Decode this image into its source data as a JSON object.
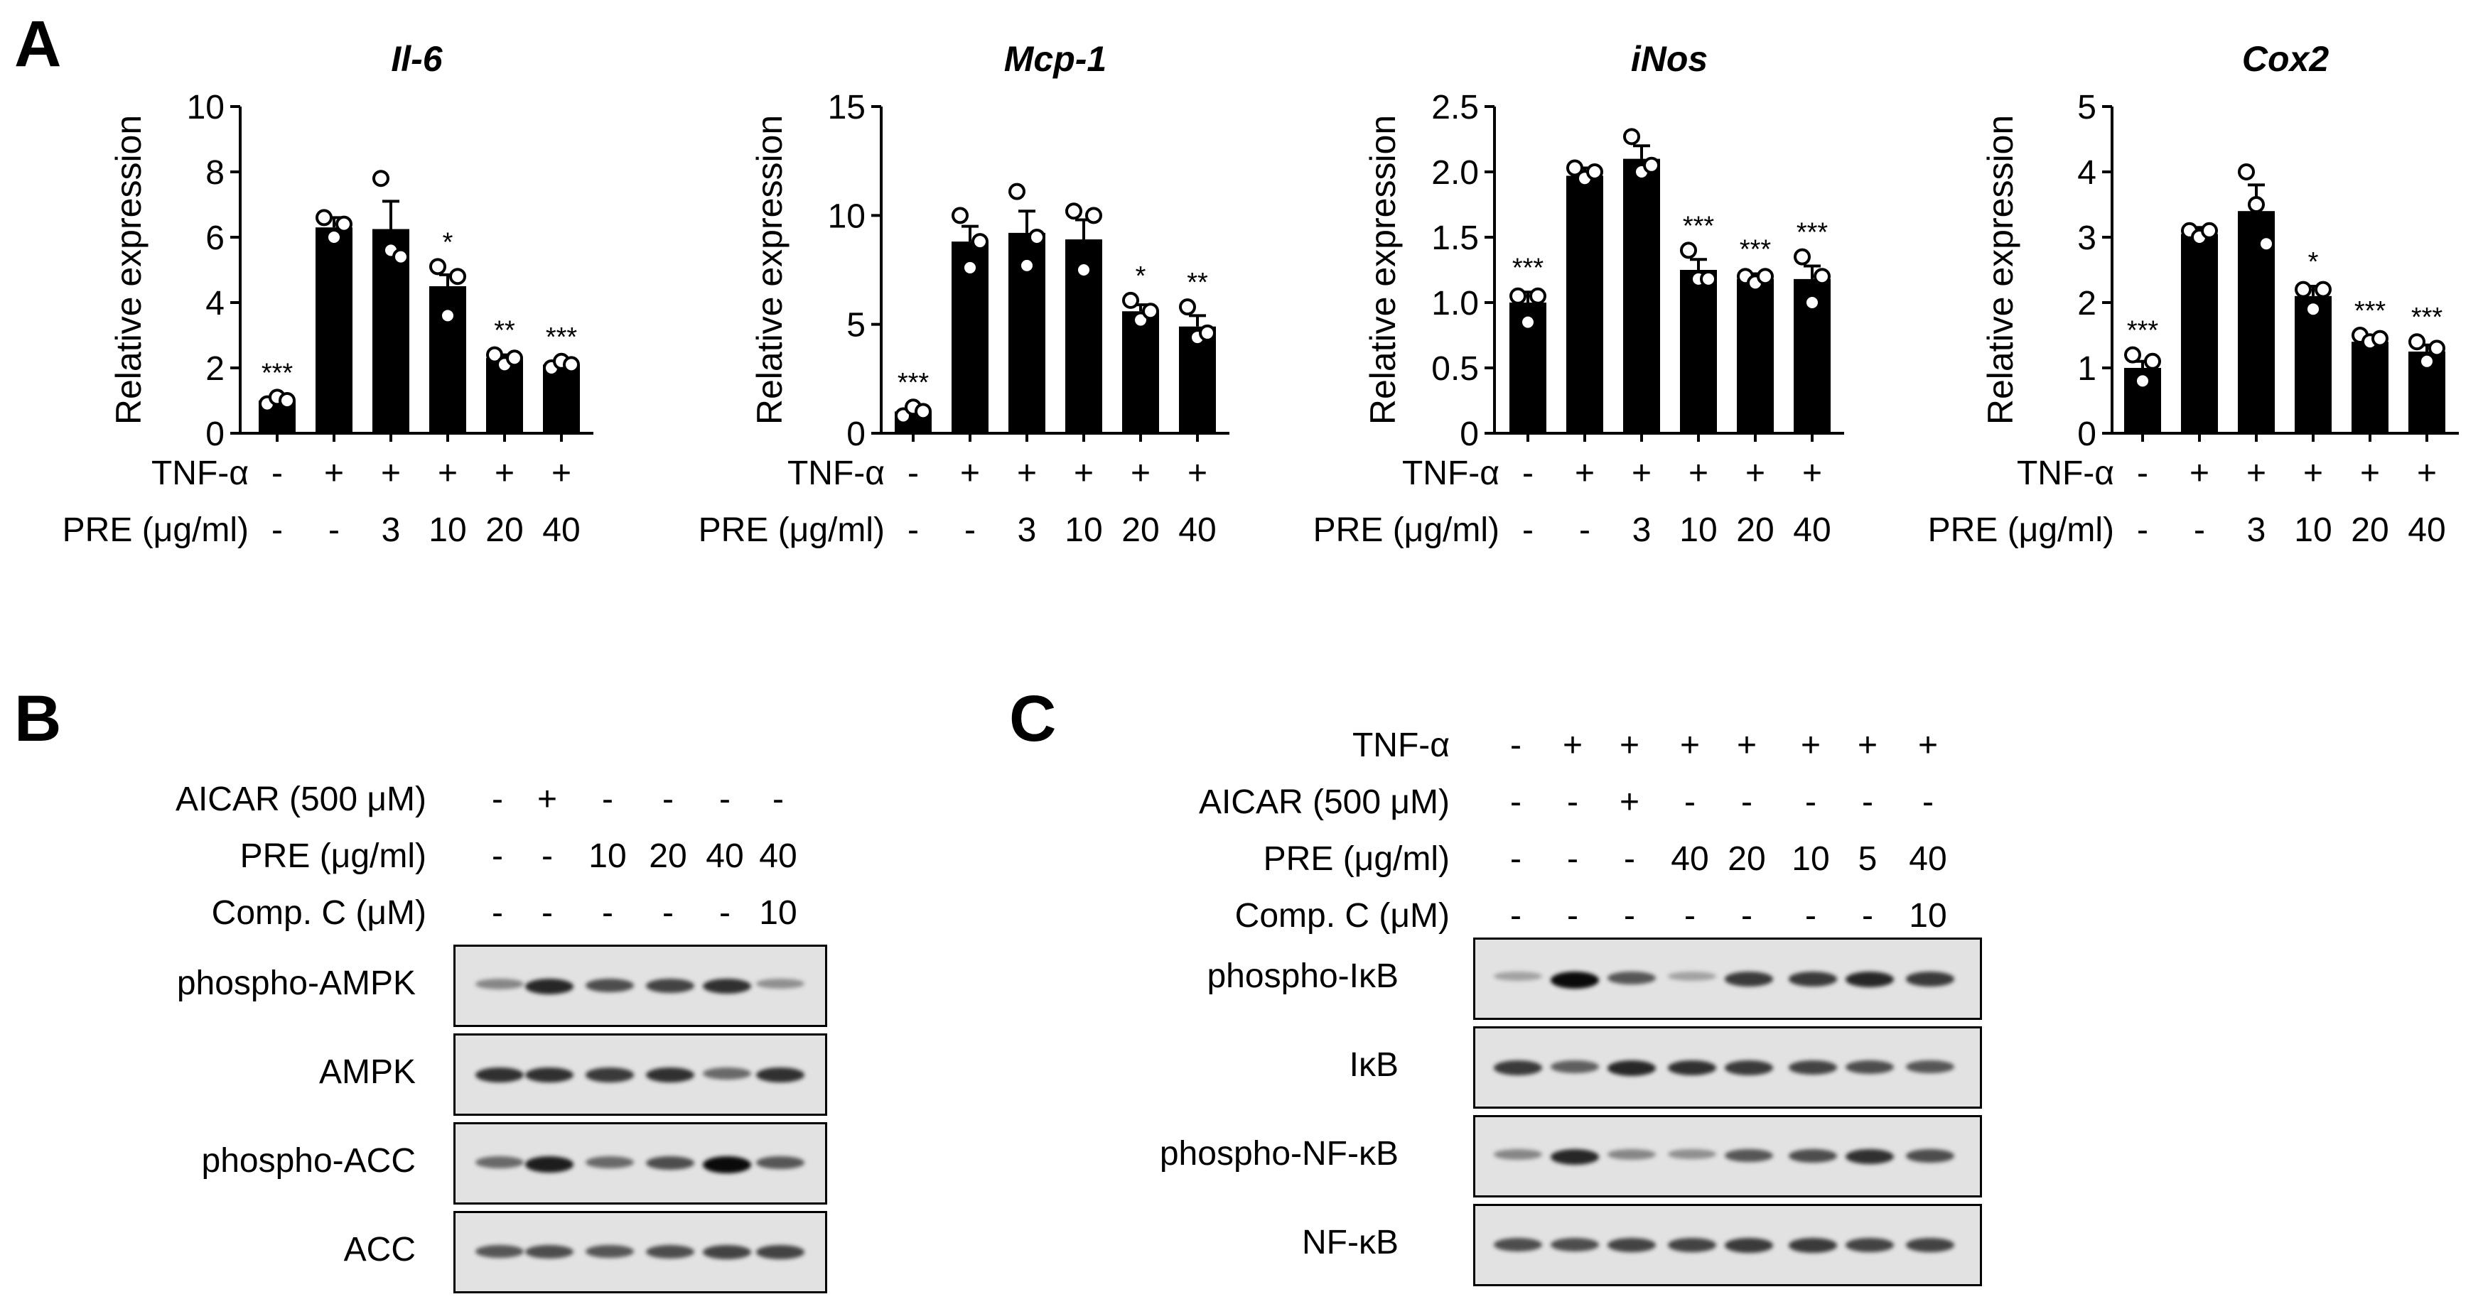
{
  "panels": {
    "a": "A",
    "b": "B",
    "c": "C"
  },
  "panel_a": {
    "treatment_labels": {
      "tnf": "TNF-α",
      "pre": "PRE (μg/ml)"
    },
    "tnf_row": [
      "-",
      "+",
      "+",
      "+",
      "+",
      "+"
    ],
    "pre_row": [
      "-",
      "-",
      "3",
      "10",
      "20",
      "40"
    ]
  },
  "chart_data": [
    {
      "type": "bar",
      "title": "Il-6",
      "ylabel": "Relative expression",
      "ylim": [
        0,
        10
      ],
      "yticks": [
        0,
        2,
        4,
        6,
        8,
        10
      ],
      "categories": [
        "-/-",
        "+/-",
        "+/3",
        "+/10",
        "+/20",
        "+/40"
      ],
      "values": [
        1.0,
        6.3,
        6.25,
        4.5,
        2.3,
        2.1
      ],
      "errors": [
        0.1,
        0.3,
        0.85,
        0.35,
        0.1,
        0.1
      ],
      "points": [
        [
          0.9,
          1.1,
          1.0
        ],
        [
          6.6,
          6.0,
          6.4
        ],
        [
          7.8,
          5.6,
          5.4
        ],
        [
          5.1,
          3.6,
          4.8
        ],
        [
          2.4,
          2.1,
          2.3
        ],
        [
          2.0,
          2.2,
          2.1
        ]
      ],
      "significance": [
        "***",
        "",
        "",
        "*",
        "**",
        "***"
      ]
    },
    {
      "type": "bar",
      "title": "Mcp-1",
      "ylabel": "Relative expression",
      "ylim": [
        0,
        15
      ],
      "yticks": [
        0,
        5,
        10,
        15
      ],
      "categories": [
        "-/-",
        "+/-",
        "+/3",
        "+/10",
        "+/20",
        "+/40"
      ],
      "values": [
        1.0,
        8.8,
        9.2,
        8.9,
        5.6,
        4.9
      ],
      "errors": [
        0.2,
        0.7,
        1.0,
        0.9,
        0.3,
        0.5
      ],
      "points": [
        [
          0.8,
          1.2,
          1.0
        ],
        [
          10.0,
          7.6,
          8.8
        ],
        [
          11.1,
          7.7,
          9.0
        ],
        [
          10.2,
          7.5,
          10.0
        ],
        [
          6.1,
          5.2,
          5.6
        ],
        [
          5.8,
          4.4,
          4.6
        ]
      ],
      "significance": [
        "***",
        "",
        "",
        "",
        "*",
        "**"
      ]
    },
    {
      "type": "bar",
      "title": "iNos",
      "ylabel": "Relative expression",
      "ylim": [
        0,
        2.5
      ],
      "yticks": [
        "0",
        "0.5",
        "1.0",
        "1.5",
        "2.0",
        "2.5"
      ],
      "categories": [
        "-/-",
        "+/-",
        "+/3",
        "+/10",
        "+/20",
        "+/40"
      ],
      "values": [
        1.0,
        1.97,
        2.1,
        1.25,
        1.18,
        1.18
      ],
      "errors": [
        0.08,
        0.06,
        0.1,
        0.08,
        0.04,
        0.1
      ],
      "points": [
        [
          1.05,
          0.85,
          1.05
        ],
        [
          2.03,
          1.95,
          2.0
        ],
        [
          2.27,
          2.0,
          2.05
        ],
        [
          1.4,
          1.18,
          1.18
        ],
        [
          1.2,
          1.15,
          1.2
        ],
        [
          1.35,
          1.0,
          1.2
        ]
      ],
      "significance": [
        "***",
        "",
        "",
        "***",
        "***",
        "***"
      ]
    },
    {
      "type": "bar",
      "title": "Cox2",
      "ylabel": "Relative expression",
      "ylim": [
        0,
        5
      ],
      "yticks": [
        0,
        1,
        2,
        3,
        4,
        5
      ],
      "categories": [
        "-/-",
        "+/-",
        "+/3",
        "+/10",
        "+/20",
        "+/40"
      ],
      "values": [
        1.0,
        3.05,
        3.4,
        2.1,
        1.4,
        1.25
      ],
      "errors": [
        0.1,
        0.1,
        0.4,
        0.15,
        0.05,
        0.1
      ],
      "points": [
        [
          1.2,
          0.8,
          1.1
        ],
        [
          3.1,
          3.0,
          3.1
        ],
        [
          4.0,
          3.5,
          2.9
        ],
        [
          2.2,
          1.9,
          2.2
        ],
        [
          1.5,
          1.4,
          1.45
        ],
        [
          1.4,
          1.1,
          1.3
        ]
      ],
      "significance": [
        "***",
        "",
        "",
        "*",
        "***",
        "***"
      ]
    }
  ],
  "panel_b": {
    "rows": [
      {
        "label": "AICAR (500 μM)",
        "values": [
          "-",
          "+",
          "-",
          "-",
          "-",
          "-"
        ]
      },
      {
        "label": "PRE (μg/ml)",
        "values": [
          "-",
          "-",
          "10",
          "20",
          "40",
          "40"
        ]
      },
      {
        "label": "Comp. C (μM)",
        "values": [
          "-",
          "-",
          "-",
          "-",
          "-",
          "10"
        ]
      }
    ],
    "blots": [
      {
        "label": "phospho-AMPK",
        "intensities": [
          0.35,
          0.85,
          0.65,
          0.7,
          0.8,
          0.3
        ]
      },
      {
        "label": "AMPK",
        "intensities": [
          0.8,
          0.8,
          0.75,
          0.8,
          0.5,
          0.8
        ]
      },
      {
        "label": "phospho-ACC",
        "intensities": [
          0.5,
          0.9,
          0.5,
          0.65,
          1.0,
          0.6
        ]
      },
      {
        "label": "ACC",
        "intensities": [
          0.6,
          0.65,
          0.6,
          0.65,
          0.7,
          0.7
        ]
      }
    ]
  },
  "panel_c": {
    "rows": [
      {
        "label": "TNF-α",
        "values": [
          "-",
          "+",
          "+",
          "+",
          "+",
          "+",
          "+",
          "+"
        ]
      },
      {
        "label": "AICAR (500 μM)",
        "values": [
          "-",
          "-",
          "+",
          "-",
          "-",
          "-",
          "-",
          "-"
        ]
      },
      {
        "label": "PRE (μg/ml)",
        "values": [
          "-",
          "-",
          "-",
          "40",
          "20",
          "10",
          "5",
          "40"
        ]
      },
      {
        "label": "Comp. C (μM)",
        "values": [
          "-",
          "-",
          "-",
          "-",
          "-",
          "-",
          "-",
          "10"
        ]
      }
    ],
    "blots": [
      {
        "label": "phospho-IκB",
        "intensities": [
          0.2,
          1.0,
          0.6,
          0.2,
          0.75,
          0.75,
          0.85,
          0.75
        ]
      },
      {
        "label": "IκB",
        "intensities": [
          0.75,
          0.55,
          0.85,
          0.8,
          0.75,
          0.7,
          0.65,
          0.6
        ]
      },
      {
        "label": "phospho-NF-κB",
        "intensities": [
          0.35,
          0.85,
          0.35,
          0.3,
          0.6,
          0.65,
          0.8,
          0.65
        ]
      },
      {
        "label": "NF-κB",
        "intensities": [
          0.65,
          0.65,
          0.7,
          0.7,
          0.75,
          0.75,
          0.7,
          0.7
        ]
      }
    ]
  }
}
